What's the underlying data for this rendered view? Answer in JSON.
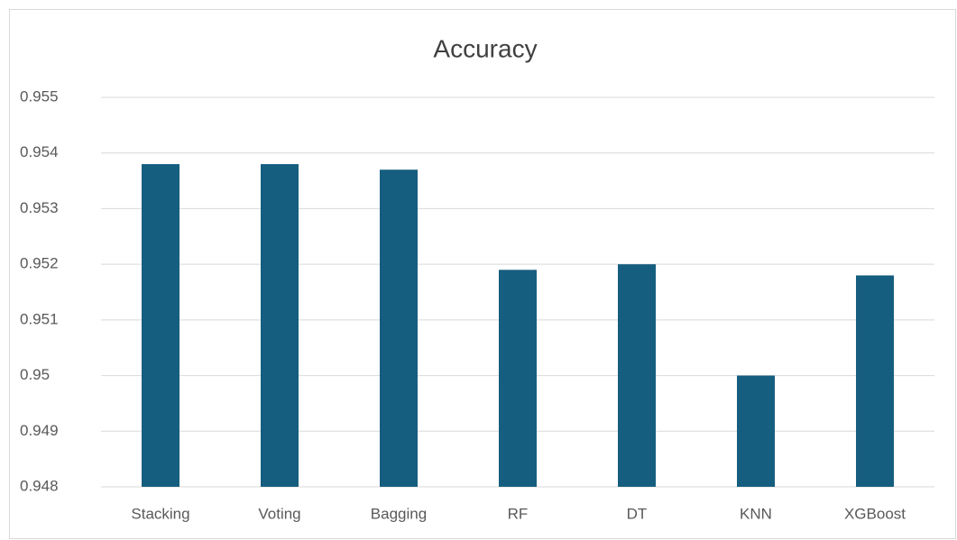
{
  "chart_data": {
    "type": "bar",
    "title": "Accuracy",
    "categories": [
      "Stacking",
      "Voting",
      "Bagging",
      "RF",
      "DT",
      "KNN",
      "XGBoost"
    ],
    "values": [
      0.9538,
      0.9538,
      0.9537,
      0.9519,
      0.952,
      0.95,
      0.9518
    ],
    "color": "#165e7f",
    "ylim": [
      0.948,
      0.955
    ],
    "yticks": [
      0.948,
      0.949,
      0.95,
      0.951,
      0.952,
      0.953,
      0.954,
      0.955
    ],
    "grid": true
  }
}
